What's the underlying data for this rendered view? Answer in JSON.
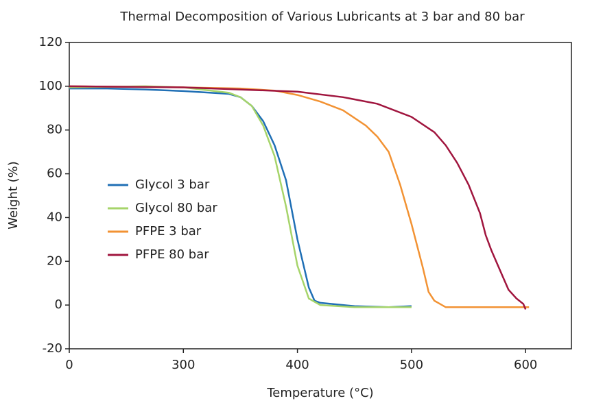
{
  "chart_data": {
    "type": "line",
    "title": "Thermal Decomposition of Various Lubricants at 3 bar and 80 bar",
    "x_label": "Temperature (°C)",
    "y_label": "Weight (%)",
    "xlim": [
      0,
      640
    ],
    "xticks": [
      0,
      300,
      400,
      500,
      600
    ],
    "ylim": [
      -20,
      120
    ],
    "yticks": [
      -20,
      0,
      20,
      40,
      60,
      80,
      100,
      120
    ],
    "legend": "left",
    "series": [
      {
        "name": "Glycol 3 bar",
        "color": "#1f6fb5",
        "x": [
          0,
          100,
          200,
          300,
          340,
          350,
          360,
          370,
          380,
          390,
          400,
          410,
          415,
          420,
          450,
          480,
          500
        ],
        "values": [
          99,
          99,
          98.5,
          97.8,
          96.5,
          95,
          91,
          84,
          73,
          57,
          30,
          8,
          2,
          1,
          -0.5,
          -1,
          -0.5
        ]
      },
      {
        "name": "Glycol 80 bar",
        "color": "#a6d46a",
        "x": [
          0,
          200,
          300,
          340,
          350,
          360,
          370,
          380,
          390,
          400,
          410,
          420,
          450,
          500
        ],
        "values": [
          99.5,
          100,
          99.5,
          97,
          95,
          91,
          82,
          68,
          45,
          18,
          3,
          0,
          -1,
          -1
        ]
      },
      {
        "name": "PFPE 3 bar",
        "color": "#f29233",
        "x": [
          0,
          300,
          350,
          380,
          400,
          420,
          440,
          460,
          470,
          480,
          490,
          500,
          510,
          515,
          520,
          530,
          600,
          603
        ],
        "values": [
          100,
          99.5,
          99,
          98,
          96,
          93,
          89,
          82,
          77,
          70,
          55,
          37,
          17,
          6,
          2,
          -1,
          -1,
          -1
        ]
      },
      {
        "name": "PFPE 80 bar",
        "color": "#a0153e",
        "x": [
          0,
          300,
          400,
          440,
          470,
          500,
          520,
          530,
          540,
          550,
          560,
          565,
          570,
          580,
          585,
          592,
          598,
          600
        ],
        "values": [
          100,
          99.5,
          97.5,
          95,
          92,
          86,
          79,
          73,
          65,
          55,
          42,
          32,
          25,
          13,
          7,
          3,
          0.5,
          -2
        ]
      }
    ]
  }
}
